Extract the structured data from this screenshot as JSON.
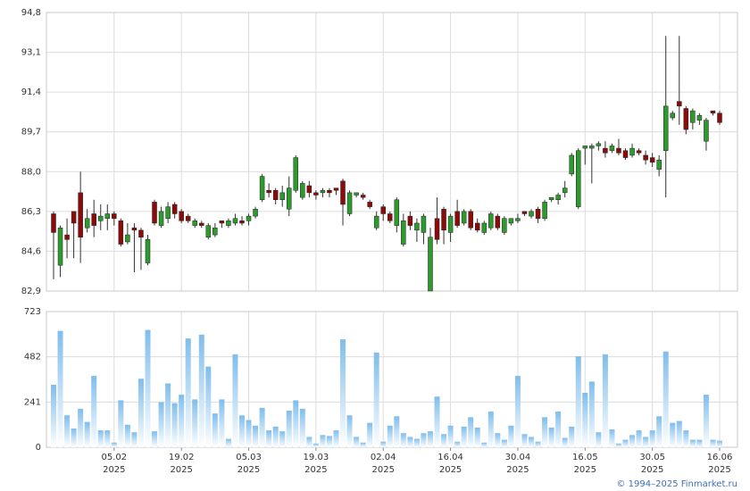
{
  "chart_data": {
    "type": "candlestick",
    "categories": [
      "23.01.2025",
      "24.01.2025",
      "27.01.2025",
      "28.01.2025",
      "29.01.2025",
      "30.01.2025",
      "31.01.2025",
      "03.02.2025",
      "04.02.2025",
      "05.02.2025",
      "06.02.2025",
      "07.02.2025",
      "10.02.2025",
      "11.02.2025",
      "12.02.2025",
      "13.02.2025",
      "14.02.2025",
      "17.02.2025",
      "18.02.2025",
      "19.02.2025",
      "20.02.2025",
      "21.02.2025",
      "24.02.2025",
      "25.02.2025",
      "26.02.2025",
      "27.02.2025",
      "28.02.2025",
      "03.03.2025",
      "04.03.2025",
      "05.03.2025",
      "06.03.2025",
      "07.03.2025",
      "10.03.2025",
      "11.03.2025",
      "12.03.2025",
      "13.03.2025",
      "14.03.2025",
      "17.03.2025",
      "18.03.2025",
      "19.03.2025",
      "20.03.2025",
      "21.03.2025",
      "24.03.2025",
      "25.03.2025",
      "26.03.2025",
      "27.03.2025",
      "28.03.2025",
      "31.03.2025",
      "01.04.2025",
      "02.04.2025",
      "03.04.2025",
      "04.04.2025",
      "07.04.2025",
      "08.04.2025",
      "09.04.2025",
      "10.04.2025",
      "11.04.2025",
      "14.04.2025",
      "15.04.2025",
      "16.04.2025",
      "17.04.2025",
      "18.04.2025",
      "21.04.2025",
      "22.04.2025",
      "23.04.2025",
      "24.04.2025",
      "25.04.2025",
      "28.04.2025",
      "29.04.2025",
      "30.04.2025",
      "02.05.2025",
      "05.05.2025",
      "06.05.2025",
      "07.05.2025",
      "08.05.2025",
      "12.05.2025",
      "13.05.2025",
      "14.05.2025",
      "15.05.2025",
      "16.05.2025",
      "19.05.2025",
      "20.05.2025",
      "21.05.2025",
      "22.05.2025",
      "23.05.2025",
      "26.05.2025",
      "27.05.2025",
      "28.05.2025",
      "29.05.2025",
      "30.05.2025",
      "02.06.2025",
      "03.06.2025",
      "04.06.2025",
      "05.06.2025",
      "06.06.2025",
      "09.06.2025",
      "10.06.2025",
      "11.06.2025",
      "13.06.2025",
      "16.06.2025"
    ],
    "open": [
      86.2,
      84.0,
      85.3,
      86.3,
      87.1,
      85.6,
      86.2,
      85.9,
      86.0,
      86.2,
      85.9,
      85.0,
      85.6,
      85.5,
      84.1,
      86.7,
      85.7,
      86.0,
      86.6,
      86.3,
      86.1,
      85.7,
      85.8,
      85.2,
      85.3,
      85.9,
      85.7,
      85.8,
      85.9,
      85.9,
      86.1,
      86.8,
      87.2,
      87.2,
      86.8,
      86.4,
      87.2,
      86.9,
      87.4,
      87.1,
      87.1,
      87.2,
      87.3,
      87.6,
      86.2,
      87.0,
      87.0,
      86.7,
      85.6,
      86.5,
      86.2,
      85.7,
      84.9,
      86.1,
      85.5,
      85.4,
      82.9,
      86.0,
      86.4,
      85.4,
      86.3,
      85.8,
      86.3,
      85.8,
      85.4,
      85.6,
      86.1,
      85.4,
      85.8,
      85.9,
      86.3,
      86.1,
      86.4,
      86.0,
      86.8,
      86.8,
      87.1,
      87.9,
      86.5,
      89.0,
      89.0,
      89.1,
      89.0,
      88.9,
      89.0,
      88.9,
      88.7,
      88.9,
      88.7,
      88.6,
      88.1,
      88.9,
      90.3,
      91.0,
      90.7,
      90.1,
      90.2,
      89.3,
      90.6,
      90.5
    ],
    "high": [
      86.3,
      85.7,
      86.0,
      86.3,
      88.0,
      86.4,
      86.8,
      86.6,
      86.6,
      86.3,
      86.0,
      85.8,
      85.8,
      85.6,
      85.3,
      86.8,
      86.5,
      86.7,
      86.7,
      86.4,
      86.2,
      86.0,
      85.9,
      85.8,
      85.8,
      85.9,
      86.0,
      86.2,
      86.1,
      86.2,
      86.5,
      87.9,
      87.5,
      87.3,
      87.4,
      87.8,
      88.7,
      87.6,
      87.6,
      87.2,
      87.3,
      87.3,
      87.3,
      87.7,
      87.2,
      87.1,
      87.1,
      86.8,
      86.3,
      86.6,
      86.3,
      86.9,
      86.2,
      86.3,
      86.0,
      86.2,
      85.6,
      86.9,
      86.5,
      86.2,
      86.8,
      86.4,
      86.4,
      86.0,
      85.9,
      86.3,
      86.2,
      86.1,
      86.0,
      86.2,
      86.3,
      86.4,
      86.5,
      86.8,
      86.9,
      87.1,
      87.6,
      88.8,
      89.0,
      89.1,
      89.2,
      89.3,
      89.3,
      89.2,
      89.4,
      89.0,
      89.2,
      89.0,
      88.9,
      88.8,
      88.7,
      93.8,
      90.6,
      93.8,
      90.8,
      90.7,
      90.5,
      90.3,
      90.6,
      90.6
    ],
    "low": [
      83.4,
      83.5,
      84.3,
      84.3,
      84.1,
      85.4,
      85.2,
      85.5,
      85.5,
      85.7,
      84.8,
      84.9,
      83.7,
      83.8,
      84.0,
      85.7,
      85.6,
      85.8,
      86.0,
      85.8,
      85.8,
      85.6,
      85.6,
      85.1,
      85.2,
      85.6,
      85.6,
      85.7,
      85.7,
      85.7,
      86.0,
      86.7,
      86.9,
      86.6,
      86.5,
      86.1,
      87.1,
      86.8,
      86.9,
      86.8,
      86.9,
      86.9,
      87.0,
      85.7,
      86.1,
      86.9,
      86.8,
      86.4,
      85.5,
      85.9,
      85.8,
      85.4,
      84.8,
      85.5,
      85.0,
      84.9,
      82.9,
      84.9,
      84.9,
      85.0,
      85.6,
      85.7,
      85.5,
      85.4,
      85.3,
      85.5,
      85.5,
      85.3,
      85.7,
      85.8,
      86.1,
      86.0,
      85.8,
      85.9,
      86.7,
      86.6,
      86.9,
      87.8,
      86.4,
      88.3,
      87.5,
      88.9,
      88.6,
      88.8,
      88.7,
      88.5,
      88.6,
      88.7,
      88.3,
      88.2,
      87.8,
      86.9,
      90.2,
      90.0,
      89.6,
      89.8,
      90.0,
      88.9,
      90.4,
      90.0
    ],
    "close": [
      85.4,
      85.6,
      85.1,
      85.8,
      85.2,
      86.0,
      85.7,
      86.1,
      86.2,
      86.0,
      84.9,
      85.3,
      85.5,
      85.2,
      85.1,
      85.8,
      86.3,
      86.5,
      86.2,
      85.9,
      85.9,
      85.9,
      85.7,
      85.7,
      85.6,
      85.8,
      85.9,
      86.0,
      85.8,
      86.1,
      86.4,
      87.8,
      87.1,
      86.8,
      87.1,
      87.3,
      88.6,
      87.5,
      87.1,
      87.0,
      87.2,
      87.1,
      87.2,
      86.6,
      87.1,
      87.1,
      86.9,
      86.5,
      86.1,
      86.2,
      85.9,
      86.8,
      85.9,
      85.7,
      85.8,
      86.1,
      85.2,
      85.1,
      85.5,
      86.1,
      85.7,
      86.3,
      85.6,
      85.5,
      85.8,
      86.2,
      85.6,
      86.0,
      86.0,
      86.0,
      86.2,
      86.3,
      86.0,
      86.7,
      86.9,
      87.0,
      87.3,
      88.7,
      88.9,
      89.1,
      89.1,
      89.2,
      88.8,
      89.1,
      88.8,
      88.6,
      89.0,
      88.8,
      88.5,
      88.4,
      88.5,
      90.8,
      90.5,
      90.8,
      89.8,
      90.6,
      90.4,
      90.2,
      90.5,
      90.1
    ],
    "up_color": "#2d9a2d",
    "down_color": "#8b0a0a",
    "wick_color": "#333333",
    "ylim": [
      82.9,
      94.8
    ],
    "yticks": [
      {
        "value": 82.9,
        "label": "82,9"
      },
      {
        "value": 84.6,
        "label": "84,6"
      },
      {
        "value": 86.3,
        "label": "86,3"
      },
      {
        "value": 88.0,
        "label": "88,0"
      },
      {
        "value": 89.7,
        "label": "89,7"
      },
      {
        "value": 91.4,
        "label": "91,4"
      },
      {
        "value": 93.1,
        "label": "93,1"
      },
      {
        "value": 94.8,
        "label": "94,8"
      }
    ],
    "xticks": [
      {
        "value": "05.02.2025",
        "day": "05.02",
        "year": "2025"
      },
      {
        "value": "19.02.2025",
        "day": "19.02",
        "year": "2025"
      },
      {
        "value": "05.03.2025",
        "day": "05.03",
        "year": "2025"
      },
      {
        "value": "19.03.2025",
        "day": "19.03",
        "year": "2025"
      },
      {
        "value": "02.04.2025",
        "day": "02.04",
        "year": "2025"
      },
      {
        "value": "16.04.2025",
        "day": "16.04",
        "year": "2025"
      },
      {
        "value": "30.04.2025",
        "day": "30.04",
        "year": "2025"
      },
      {
        "value": "16.05.2025",
        "day": "16.05",
        "year": "2025"
      },
      {
        "value": "30.05.2025",
        "day": "30.05",
        "year": "2025"
      },
      {
        "value": "16.06.2025",
        "day": "16.06",
        "year": "2025"
      }
    ],
    "grid": true,
    "volume": {
      "type": "bar",
      "color": "#7fbdec",
      "values": [
        333,
        620,
        170,
        100,
        205,
        135,
        380,
        90,
        90,
        25,
        250,
        120,
        80,
        365,
        625,
        85,
        240,
        340,
        235,
        280,
        580,
        255,
        600,
        430,
        180,
        255,
        45,
        495,
        170,
        145,
        115,
        210,
        90,
        110,
        85,
        195,
        250,
        205,
        55,
        20,
        65,
        60,
        90,
        575,
        170,
        55,
        25,
        130,
        505,
        30,
        115,
        165,
        75,
        55,
        45,
        75,
        85,
        270,
        70,
        115,
        30,
        110,
        160,
        105,
        25,
        190,
        75,
        40,
        115,
        380,
        70,
        55,
        30,
        160,
        105,
        190,
        50,
        110,
        485,
        290,
        350,
        80,
        495,
        95,
        20,
        40,
        65,
        90,
        55,
        90,
        165,
        510,
        130,
        140,
        90,
        40,
        40,
        280,
        40,
        35
      ],
      "ylim": [
        0,
        723
      ],
      "yticks": [
        0,
        241,
        482,
        723
      ]
    }
  },
  "footer": "© 1994–2025 Finmarket.ru"
}
